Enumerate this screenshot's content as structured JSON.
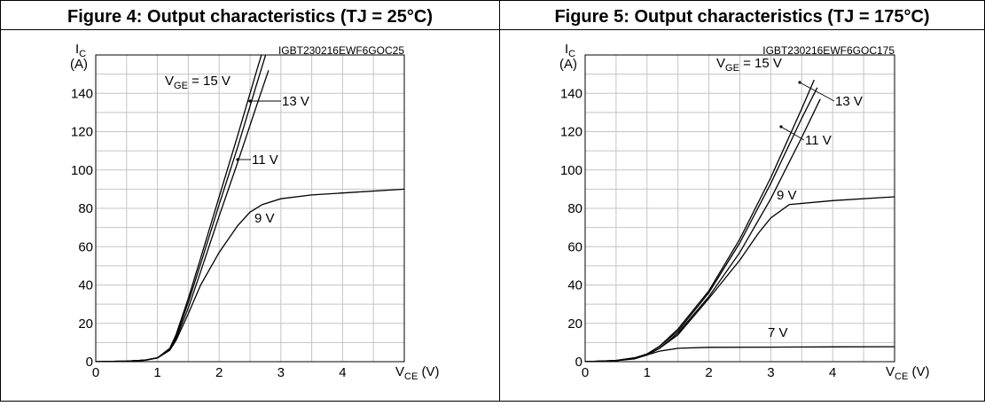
{
  "panels": [
    {
      "title": "Figure 4: Output characteristics (TJ = 25°C)",
      "code": "IGBT230216EWF6GOC25",
      "ylabel_main": "I",
      "ylabel_sub": "C",
      "ylabel_unit": "(A)",
      "xlabel_main": "V",
      "xlabel_sub": "CE",
      "xlabel_unit": " (V)"
    },
    {
      "title": "Figure 5: Output characteristics (TJ = 175°C)",
      "code": "IGBT230216EWF6GOC175",
      "ylabel_main": "I",
      "ylabel_sub": "C",
      "ylabel_unit": "(A)",
      "xlabel_main": "V",
      "xlabel_sub": "CE",
      "xlabel_unit": " (V)"
    }
  ],
  "chart_data": [
    {
      "type": "line",
      "title": "Figure 4: Output characteristics (TJ = 25°C)",
      "xlabel": "VCE (V)",
      "ylabel": "IC (A)",
      "xlim": [
        0,
        5
      ],
      "ylim": [
        0,
        160
      ],
      "xticks": [
        "0",
        "1",
        "2",
        "3",
        "4"
      ],
      "yticks": [
        "0",
        "20",
        "40",
        "60",
        "80",
        "100",
        "120",
        "140"
      ],
      "grid": true,
      "series": [
        {
          "name": "VGE = 15 V",
          "x": [
            0,
            0.5,
            0.8,
            1.0,
            1.2,
            1.3,
            1.5,
            1.7,
            2.0,
            2.3,
            2.6,
            2.75
          ],
          "y": [
            0,
            0.3,
            0.8,
            2,
            7,
            14,
            33,
            54,
            86,
            118,
            151,
            167
          ]
        },
        {
          "name": "13 V",
          "x": [
            0,
            0.5,
            0.8,
            1.0,
            1.2,
            1.3,
            1.5,
            1.7,
            2.0,
            2.3,
            2.6,
            2.8
          ],
          "y": [
            0,
            0.3,
            0.8,
            2,
            6.5,
            13,
            31,
            51,
            82,
            112,
            144,
            165
          ]
        },
        {
          "name": "11 V",
          "x": [
            0,
            0.5,
            0.8,
            1.0,
            1.2,
            1.3,
            1.5,
            1.7,
            2.0,
            2.3,
            2.6,
            2.8
          ],
          "y": [
            0,
            0.3,
            0.8,
            2,
            6,
            12,
            28,
            47,
            76,
            104,
            133,
            152
          ]
        },
        {
          "name": "9 V",
          "x": [
            0,
            0.5,
            0.8,
            1.0,
            1.2,
            1.3,
            1.5,
            1.7,
            2.0,
            2.3,
            2.5,
            2.7,
            3.0,
            3.5,
            4.0,
            5.0
          ],
          "y": [
            0,
            0.3,
            0.8,
            2,
            6,
            11,
            25,
            40,
            57,
            71,
            78,
            82,
            85,
            87,
            88,
            90
          ]
        }
      ],
      "annotations": [
        {
          "text": "V",
          "sub": "GE",
          "rest": " = 15 V",
          "series": "VGE = 15 V"
        },
        {
          "text": "13 V",
          "series": "13 V"
        },
        {
          "text": "11 V",
          "series": "11 V"
        },
        {
          "text": "9 V",
          "series": "9 V"
        }
      ]
    },
    {
      "type": "line",
      "title": "Figure 5: Output characteristics (TJ = 175°C)",
      "xlabel": "VCE (V)",
      "ylabel": "IC (A)",
      "xlim": [
        0,
        5
      ],
      "ylim": [
        0,
        160
      ],
      "xticks": [
        "0",
        "1",
        "2",
        "3",
        "4"
      ],
      "yticks": [
        "0",
        "20",
        "40",
        "60",
        "80",
        "100",
        "120",
        "140"
      ],
      "grid": true,
      "series": [
        {
          "name": "VGE = 15 V",
          "x": [
            0,
            0.5,
            0.8,
            1.0,
            1.2,
            1.5,
            2.0,
            2.5,
            3.0,
            3.5,
            3.7
          ],
          "y": [
            0,
            0.6,
            2,
            4,
            8,
            17,
            37,
            64,
            96,
            132,
            147
          ]
        },
        {
          "name": "13 V",
          "x": [
            0,
            0.5,
            0.8,
            1.0,
            1.2,
            1.5,
            2.0,
            2.5,
            3.0,
            3.5,
            3.75
          ],
          "y": [
            0,
            0.6,
            2,
            4,
            8,
            16,
            36,
            62,
            93,
            127,
            143
          ]
        },
        {
          "name": "11 V",
          "x": [
            0,
            0.5,
            0.8,
            1.0,
            1.2,
            1.5,
            2.0,
            2.5,
            3.0,
            3.5,
            3.8
          ],
          "y": [
            0,
            0.5,
            1.8,
            3.5,
            7,
            15,
            34,
            57,
            85,
            117,
            137
          ]
        },
        {
          "name": "9 V",
          "x": [
            0,
            0.5,
            0.8,
            1.0,
            1.2,
            1.5,
            2.0,
            2.5,
            2.8,
            3.0,
            3.3,
            4.0,
            5.0
          ],
          "y": [
            0,
            0.5,
            1.8,
            3.5,
            7,
            14,
            33,
            53,
            67,
            75,
            82,
            84,
            86
          ]
        },
        {
          "name": "7 V",
          "x": [
            0,
            0.5,
            0.8,
            1.0,
            1.2,
            1.5,
            2.0,
            3.0,
            4.0,
            5.0
          ],
          "y": [
            0,
            0.5,
            1.5,
            3.5,
            5.5,
            7,
            7.5,
            7.6,
            7.7,
            7.8
          ]
        }
      ],
      "annotations": [
        {
          "text": "V",
          "sub": "GE",
          "rest": " = 15 V",
          "series": "VGE = 15 V"
        },
        {
          "text": "13 V",
          "series": "13 V"
        },
        {
          "text": "11 V",
          "series": "11 V"
        },
        {
          "text": "9 V",
          "series": "9 V"
        },
        {
          "text": "7 V",
          "series": "7 V"
        }
      ]
    }
  ]
}
